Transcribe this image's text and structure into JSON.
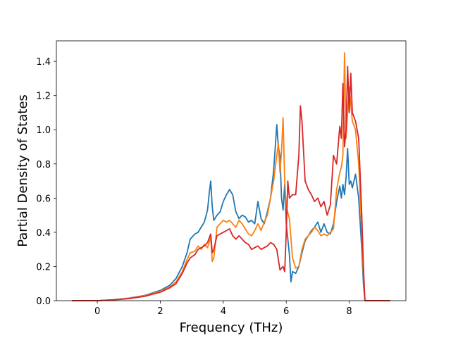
{
  "chart_data": {
    "type": "line",
    "title": "",
    "xlabel": "Frequency (THz)",
    "ylabel": "Partial Density of States",
    "xlim": [
      -1.3,
      9.8
    ],
    "ylim": [
      0.0,
      1.52
    ],
    "xticks": [
      0,
      2,
      4,
      6,
      8
    ],
    "yticks": [
      0.0,
      0.2,
      0.4,
      0.6,
      0.8,
      1.0,
      1.2,
      1.4
    ],
    "grid": false,
    "legend": "none",
    "series": [
      {
        "color": "#1f77b4",
        "x": [
          -0.8,
          0.0,
          0.5,
          1.0,
          1.5,
          2.0,
          2.3,
          2.5,
          2.7,
          2.85,
          2.95,
          3.1,
          3.2,
          3.3,
          3.4,
          3.5,
          3.55,
          3.6,
          3.65,
          3.7,
          3.8,
          3.9,
          4.0,
          4.1,
          4.2,
          4.3,
          4.4,
          4.5,
          4.6,
          4.7,
          4.8,
          4.9,
          5.0,
          5.1,
          5.2,
          5.3,
          5.4,
          5.5,
          5.6,
          5.7,
          5.75,
          5.8,
          5.85,
          5.9,
          5.95,
          6.0,
          6.1,
          6.15,
          6.2,
          6.3,
          6.4,
          6.5,
          6.6,
          6.7,
          6.8,
          6.9,
          7.0,
          7.1,
          7.2,
          7.3,
          7.4,
          7.5,
          7.6,
          7.7,
          7.75,
          7.8,
          7.85,
          7.9,
          7.95,
          8.0,
          8.05,
          8.1,
          8.2,
          8.3,
          8.4,
          8.45,
          8.5,
          9.3
        ],
        "y": [
          0.0,
          0.0,
          0.005,
          0.015,
          0.03,
          0.06,
          0.09,
          0.13,
          0.2,
          0.28,
          0.36,
          0.39,
          0.4,
          0.43,
          0.46,
          0.53,
          0.62,
          0.7,
          0.55,
          0.47,
          0.5,
          0.52,
          0.58,
          0.62,
          0.65,
          0.62,
          0.52,
          0.48,
          0.5,
          0.49,
          0.46,
          0.47,
          0.45,
          0.58,
          0.48,
          0.45,
          0.52,
          0.6,
          0.76,
          1.03,
          0.9,
          0.85,
          0.6,
          0.53,
          0.68,
          0.45,
          0.27,
          0.11,
          0.17,
          0.16,
          0.2,
          0.28,
          0.35,
          0.38,
          0.41,
          0.43,
          0.46,
          0.4,
          0.45,
          0.4,
          0.39,
          0.45,
          0.58,
          0.67,
          0.6,
          0.68,
          0.62,
          0.72,
          0.89,
          0.68,
          0.7,
          0.66,
          0.74,
          0.6,
          0.3,
          0.1,
          0.0,
          0.0
        ]
      },
      {
        "color": "#ff7f0e",
        "x": [
          -0.8,
          0.0,
          0.5,
          1.0,
          1.5,
          2.0,
          2.3,
          2.5,
          2.7,
          2.85,
          2.95,
          3.1,
          3.2,
          3.3,
          3.4,
          3.5,
          3.6,
          3.65,
          3.7,
          3.8,
          3.9,
          4.0,
          4.1,
          4.2,
          4.3,
          4.4,
          4.5,
          4.6,
          4.7,
          4.8,
          4.9,
          5.0,
          5.1,
          5.2,
          5.3,
          5.4,
          5.5,
          5.6,
          5.7,
          5.75,
          5.8,
          5.85,
          5.9,
          5.95,
          6.0,
          6.1,
          6.2,
          6.3,
          6.4,
          6.5,
          6.6,
          6.7,
          6.8,
          6.9,
          7.0,
          7.1,
          7.2,
          7.3,
          7.4,
          7.5,
          7.6,
          7.7,
          7.75,
          7.8,
          7.85,
          7.9,
          7.95,
          8.0,
          8.1,
          8.2,
          8.3,
          8.4,
          8.45,
          8.5,
          9.3
        ],
        "y": [
          0.0,
          0.0,
          0.005,
          0.013,
          0.028,
          0.055,
          0.08,
          0.11,
          0.17,
          0.24,
          0.28,
          0.29,
          0.32,
          0.3,
          0.33,
          0.31,
          0.37,
          0.23,
          0.25,
          0.43,
          0.45,
          0.47,
          0.46,
          0.47,
          0.45,
          0.43,
          0.47,
          0.45,
          0.42,
          0.39,
          0.38,
          0.41,
          0.45,
          0.41,
          0.46,
          0.5,
          0.6,
          0.7,
          0.85,
          0.92,
          0.75,
          0.87,
          1.07,
          0.7,
          0.55,
          0.48,
          0.25,
          0.19,
          0.2,
          0.3,
          0.36,
          0.38,
          0.4,
          0.43,
          0.41,
          0.38,
          0.39,
          0.38,
          0.4,
          0.42,
          0.65,
          0.75,
          0.78,
          0.85,
          1.45,
          0.95,
          1.1,
          1.25,
          1.05,
          1.0,
          0.8,
          0.4,
          0.15,
          0.0,
          0.0
        ]
      },
      {
        "color": "#d62728",
        "x": [
          -0.8,
          0.0,
          0.5,
          1.0,
          1.5,
          2.0,
          2.3,
          2.5,
          2.7,
          2.85,
          2.95,
          3.1,
          3.2,
          3.3,
          3.4,
          3.5,
          3.6,
          3.65,
          3.7,
          3.8,
          3.9,
          4.0,
          4.1,
          4.2,
          4.3,
          4.4,
          4.5,
          4.6,
          4.7,
          4.8,
          4.9,
          5.0,
          5.1,
          5.2,
          5.3,
          5.4,
          5.5,
          5.6,
          5.7,
          5.8,
          5.9,
          5.95,
          6.0,
          6.05,
          6.1,
          6.2,
          6.3,
          6.4,
          6.45,
          6.5,
          6.6,
          6.7,
          6.8,
          6.9,
          7.0,
          7.1,
          7.2,
          7.3,
          7.4,
          7.5,
          7.6,
          7.7,
          7.75,
          7.8,
          7.85,
          7.9,
          7.95,
          8.0,
          8.05,
          8.1,
          8.2,
          8.3,
          8.4,
          8.45,
          8.5,
          9.3
        ],
        "y": [
          0.0,
          0.0,
          0.005,
          0.012,
          0.025,
          0.05,
          0.075,
          0.1,
          0.16,
          0.22,
          0.25,
          0.27,
          0.3,
          0.31,
          0.32,
          0.34,
          0.39,
          0.28,
          0.3,
          0.38,
          0.39,
          0.4,
          0.41,
          0.42,
          0.38,
          0.36,
          0.38,
          0.36,
          0.34,
          0.33,
          0.3,
          0.31,
          0.32,
          0.3,
          0.31,
          0.32,
          0.34,
          0.33,
          0.3,
          0.18,
          0.2,
          0.17,
          0.4,
          0.7,
          0.6,
          0.62,
          0.62,
          0.85,
          1.14,
          1.05,
          0.7,
          0.65,
          0.62,
          0.58,
          0.6,
          0.55,
          0.58,
          0.5,
          0.56,
          0.85,
          0.8,
          1.02,
          0.95,
          1.27,
          0.9,
          1.0,
          1.37,
          1.1,
          1.33,
          1.1,
          1.05,
          0.95,
          0.5,
          0.2,
          0.0,
          0.0
        ]
      }
    ]
  }
}
